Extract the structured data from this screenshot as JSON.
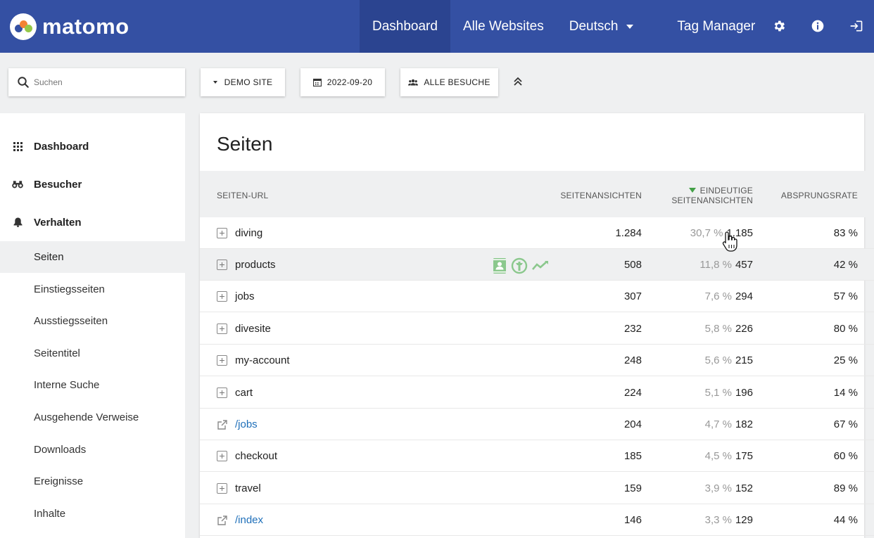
{
  "topbar": {
    "logo_text": "matomo",
    "nav": [
      {
        "label": "Dashboard",
        "active": true
      },
      {
        "label": "Alle Websites"
      },
      {
        "label": "Deutsch"
      },
      {
        "label": "Tag Manager"
      }
    ],
    "icons": [
      "gear-icon",
      "info-icon",
      "logout-icon"
    ],
    "color": "#3450a3"
  },
  "toolbar": {
    "search_placeholder": "Suchen",
    "site_label": "DEMO SITE",
    "date_label": "2022-09-20",
    "segment_label": "ALLE BESUCHE"
  },
  "sidebar": {
    "categories": [
      {
        "label": "Dashboard",
        "icon": "grid-icon"
      },
      {
        "label": "Besucher",
        "icon": "binoculars-icon"
      },
      {
        "label": "Verhalten",
        "icon": "bell-icon"
      }
    ],
    "items": [
      {
        "label": "Seiten",
        "active": true
      },
      {
        "label": "Einstiegsseiten"
      },
      {
        "label": "Ausstiegsseiten"
      },
      {
        "label": "Seitentitel"
      },
      {
        "label": "Interne Suche"
      },
      {
        "label": "Ausgehende Verweise"
      },
      {
        "label": "Downloads"
      },
      {
        "label": "Ereignisse"
      },
      {
        "label": "Inhalte"
      }
    ]
  },
  "report": {
    "title": "Seiten",
    "columns": {
      "url": "SEITEN-URL",
      "pageviews": "SEITENANSICHTEN",
      "unique_line1": "EINDEUTIGE",
      "unique_line2": "SEITENANSICHTEN",
      "bounce": "ABSPRUNGSRATE"
    },
    "rows": [
      {
        "label": "diving",
        "type": "folder",
        "pageviews": "1.284",
        "share": "30,7 %",
        "unique": "1.185",
        "bounce": "83 %"
      },
      {
        "label": "products",
        "type": "folder",
        "pageviews": "508",
        "share": "11,8 %",
        "unique": "457",
        "bounce": "42 %",
        "hover": true
      },
      {
        "label": "jobs",
        "type": "folder",
        "pageviews": "307",
        "share": "7,6 %",
        "unique": "294",
        "bounce": "57 %"
      },
      {
        "label": "divesite",
        "type": "folder",
        "pageviews": "232",
        "share": "5,8 %",
        "unique": "226",
        "bounce": "80 %"
      },
      {
        "label": "my-account",
        "type": "folder",
        "pageviews": "248",
        "share": "5,6 %",
        "unique": "215",
        "bounce": "25 %"
      },
      {
        "label": "cart",
        "type": "folder",
        "pageviews": "224",
        "share": "5,1 %",
        "unique": "196",
        "bounce": "14 %"
      },
      {
        "label": "/jobs",
        "type": "link",
        "pageviews": "204",
        "share": "4,7 %",
        "unique": "182",
        "bounce": "67 %"
      },
      {
        "label": "checkout",
        "type": "folder",
        "pageviews": "185",
        "share": "4,5 %",
        "unique": "175",
        "bounce": "60 %"
      },
      {
        "label": "travel",
        "type": "folder",
        "pageviews": "159",
        "share": "3,9 %",
        "unique": "152",
        "bounce": "89 %"
      },
      {
        "label": "/index",
        "type": "link",
        "pageviews": "146",
        "share": "3,3 %",
        "unique": "129",
        "bounce": "44 %"
      }
    ]
  }
}
